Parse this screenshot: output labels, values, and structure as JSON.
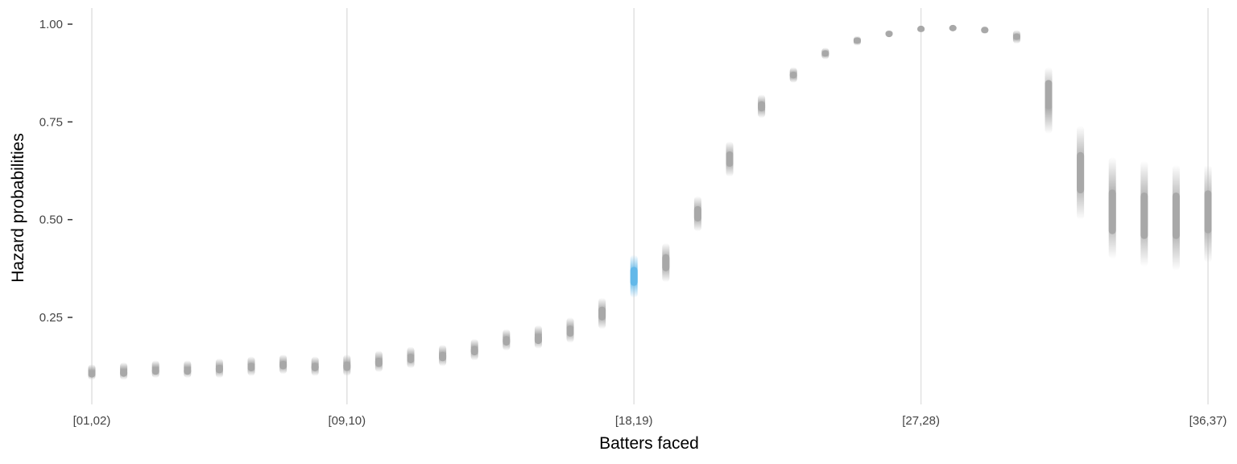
{
  "chart_data": {
    "type": "scatter",
    "title": "",
    "xlabel": "Batters faced",
    "ylabel": "Hazard probabilities",
    "x_tick_labels": [
      "[01,02)",
      "[09,10)",
      "[18,19)",
      "[27,28)",
      "[36,37)"
    ],
    "x_tick_positions": [
      1,
      9,
      18,
      27,
      36
    ],
    "y_ticks": [
      0.25,
      0.5,
      0.75,
      1.0
    ],
    "y_tick_labels": [
      "0.25",
      "0.50",
      "0.75",
      "1.00"
    ],
    "xlim": [
      0.5,
      36.5
    ],
    "ylim": [
      0.03,
      1.03
    ],
    "grid": "vertical major lines only",
    "highlight_color": "#62b8e9",
    "base_color": "#a8a8a8",
    "series": [
      {
        "x": [
          1,
          2,
          3,
          4,
          5,
          6,
          7,
          8,
          9,
          10,
          11,
          12,
          13,
          14,
          15,
          16,
          17,
          18,
          19,
          20,
          21,
          22,
          23,
          24,
          25,
          26,
          27,
          28,
          29,
          30,
          31,
          32,
          33,
          34,
          35,
          36
        ],
        "y_median": [
          0.105,
          0.108,
          0.113,
          0.113,
          0.118,
          0.123,
          0.128,
          0.123,
          0.125,
          0.135,
          0.145,
          0.15,
          0.165,
          0.19,
          0.195,
          0.215,
          0.26,
          0.355,
          0.39,
          0.515,
          0.655,
          0.79,
          0.87,
          0.925,
          0.958,
          0.975,
          0.988,
          0.99,
          0.985,
          0.968,
          0.82,
          0.62,
          0.52,
          0.51,
          0.51,
          0.52
        ],
        "y_low": [
          0.09,
          0.09,
          0.095,
          0.095,
          0.095,
          0.1,
          0.105,
          0.1,
          0.1,
          0.11,
          0.12,
          0.125,
          0.14,
          0.165,
          0.17,
          0.185,
          0.22,
          0.3,
          0.34,
          0.47,
          0.61,
          0.76,
          0.85,
          0.91,
          0.945,
          0.967,
          0.982,
          0.985,
          0.975,
          0.95,
          0.72,
          0.5,
          0.4,
          0.38,
          0.37,
          0.39
        ],
        "y_high": [
          0.13,
          0.135,
          0.14,
          0.14,
          0.145,
          0.15,
          0.155,
          0.15,
          0.155,
          0.165,
          0.175,
          0.18,
          0.195,
          0.22,
          0.23,
          0.25,
          0.3,
          0.41,
          0.44,
          0.56,
          0.7,
          0.82,
          0.89,
          0.94,
          0.97,
          0.985,
          0.995,
          0.998,
          0.995,
          0.985,
          0.89,
          0.74,
          0.66,
          0.65,
          0.64,
          0.64
        ],
        "highlight_index": 17
      }
    ]
  }
}
